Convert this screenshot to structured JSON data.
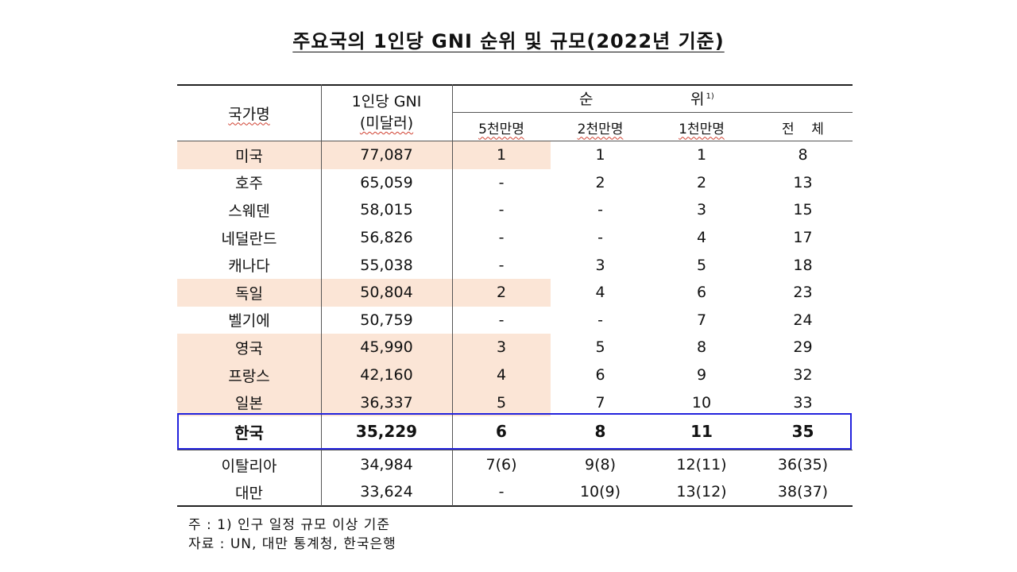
{
  "title": "주요국의 1인당 GNI 순위 및 규모(2022년 기준)",
  "header": {
    "country": "국가명",
    "gni_line1": "1인당 GNI",
    "gni_line2": "(미달러)",
    "rank_a": "순",
    "rank_b": "위",
    "rank_sup": "1)",
    "sub": [
      "5천만명",
      "2천만명",
      "1천만명",
      "전    체"
    ]
  },
  "rows": [
    {
      "country": "미국",
      "gni": "77,087",
      "r50": "1",
      "r20": "1",
      "r10": "1",
      "all": "8",
      "shade": [
        true,
        true,
        true,
        false,
        false,
        false
      ]
    },
    {
      "country": "호주",
      "gni": "65,059",
      "r50": "-",
      "r20": "2",
      "r10": "2",
      "all": "13",
      "shade": [
        false,
        false,
        false,
        false,
        false,
        false
      ]
    },
    {
      "country": "스웨덴",
      "gni": "58,015",
      "r50": "-",
      "r20": "-",
      "r10": "3",
      "all": "15",
      "shade": [
        false,
        false,
        false,
        false,
        false,
        false
      ]
    },
    {
      "country": "네덜란드",
      "gni": "56,826",
      "r50": "-",
      "r20": "-",
      "r10": "4",
      "all": "17",
      "shade": [
        false,
        false,
        false,
        false,
        false,
        false
      ]
    },
    {
      "country": "캐나다",
      "gni": "55,038",
      "r50": "-",
      "r20": "3",
      "r10": "5",
      "all": "18",
      "shade": [
        false,
        false,
        false,
        false,
        false,
        false
      ]
    },
    {
      "country": "독일",
      "gni": "50,804",
      "r50": "2",
      "r20": "4",
      "r10": "6",
      "all": "23",
      "shade": [
        true,
        true,
        true,
        false,
        false,
        false
      ]
    },
    {
      "country": "벨기에",
      "gni": "50,759",
      "r50": "-",
      "r20": "-",
      "r10": "7",
      "all": "24",
      "shade": [
        false,
        false,
        false,
        false,
        false,
        false
      ]
    },
    {
      "country": "영국",
      "gni": "45,990",
      "r50": "3",
      "r20": "5",
      "r10": "8",
      "all": "29",
      "shade": [
        true,
        true,
        true,
        false,
        false,
        false
      ]
    },
    {
      "country": "프랑스",
      "gni": "42,160",
      "r50": "4",
      "r20": "6",
      "r10": "9",
      "all": "32",
      "shade": [
        true,
        true,
        true,
        false,
        false,
        false
      ]
    },
    {
      "country": "일본",
      "gni": "36,337",
      "r50": "5",
      "r20": "7",
      "r10": "10",
      "all": "33",
      "shade": [
        true,
        true,
        true,
        false,
        false,
        false
      ]
    }
  ],
  "korea": {
    "country": "한국",
    "gni": "35,229",
    "r50": "6",
    "r20": "8",
    "r10": "11",
    "all": "35"
  },
  "bottom_rows": [
    {
      "country": "이탈리아",
      "gni": "34,984",
      "r50": "7(6)",
      "r20": "9(8)",
      "r10": "12(11)",
      "all": "36(35)"
    },
    {
      "country": "대만",
      "gni": "33,624",
      "r50": "-",
      "r20": "10(9)",
      "r10": "13(12)",
      "all": "38(37)"
    }
  ],
  "notes": {
    "note1": "주 : 1) 인구 일정 규모 이상 기준",
    "note2": "자료 : UN, 대만 통계청, 한국은행"
  },
  "colors": {
    "shade": "#fbe5d6",
    "korea_border": "#2222dd"
  }
}
